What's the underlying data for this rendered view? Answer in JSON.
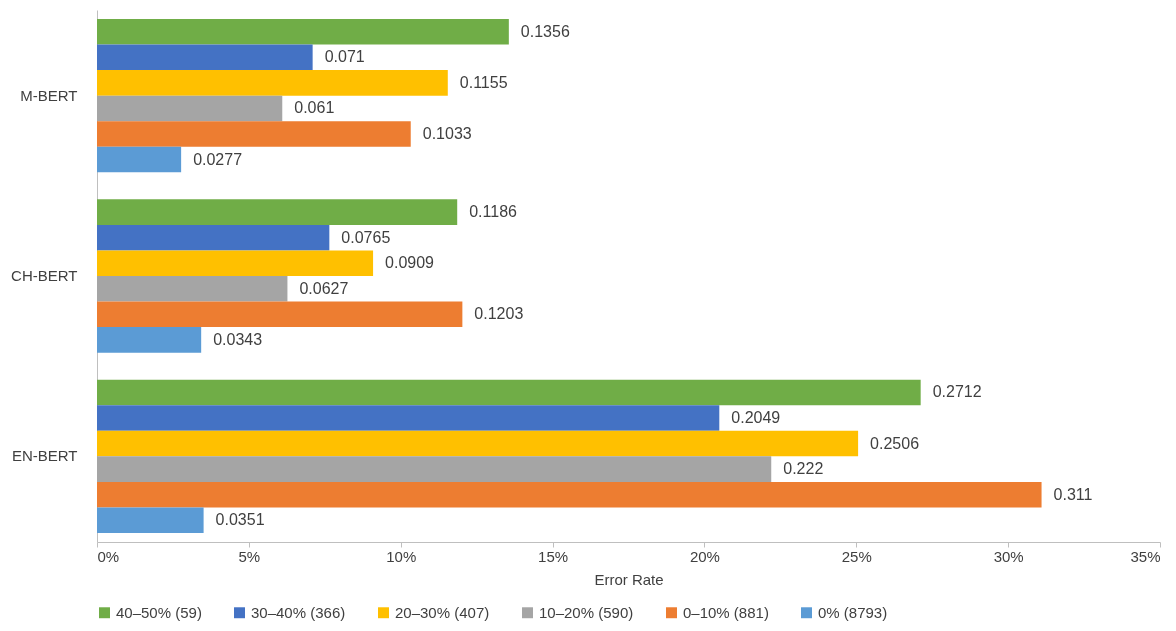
{
  "chart_data": {
    "type": "bar",
    "orientation": "horizontal",
    "xlabel": "Error Rate",
    "categories": [
      "M-BERT",
      "CH-BERT",
      "EN-BERT"
    ],
    "series": [
      {
        "name": "40–50% (59)",
        "color": "#70ad47",
        "values": [
          0.1356,
          0.1186,
          0.2712
        ]
      },
      {
        "name": "30–40% (366)",
        "color": "#4472c4",
        "values": [
          0.071,
          0.0765,
          0.2049
        ]
      },
      {
        "name": "20–30% (407)",
        "color": "#ffc000",
        "values": [
          0.1155,
          0.0909,
          0.2506
        ]
      },
      {
        "name": "10–20% (590)",
        "color": "#a5a5a5",
        "values": [
          0.061,
          0.0627,
          0.222
        ]
      },
      {
        "name": "0–10% (881)",
        "color": "#ed7d31",
        "values": [
          0.1033,
          0.1203,
          0.311
        ]
      },
      {
        "name": "0% (8793)",
        "color": "#5b9bd5",
        "values": [
          0.0277,
          0.0343,
          0.0351
        ]
      }
    ],
    "xlim": [
      0,
      0.35
    ],
    "xticks": [
      {
        "value": 0,
        "label": "0%"
      },
      {
        "value": 0.05,
        "label": "5%"
      },
      {
        "value": 0.1,
        "label": "10%"
      },
      {
        "value": 0.15,
        "label": "15%"
      },
      {
        "value": 0.2,
        "label": "20%"
      },
      {
        "value": 0.25,
        "label": "25%"
      },
      {
        "value": 0.3,
        "label": "30%"
      },
      {
        "value": 0.35,
        "label": "35%"
      }
    ],
    "data_labels": true,
    "grid": false,
    "legend": "bottom"
  }
}
